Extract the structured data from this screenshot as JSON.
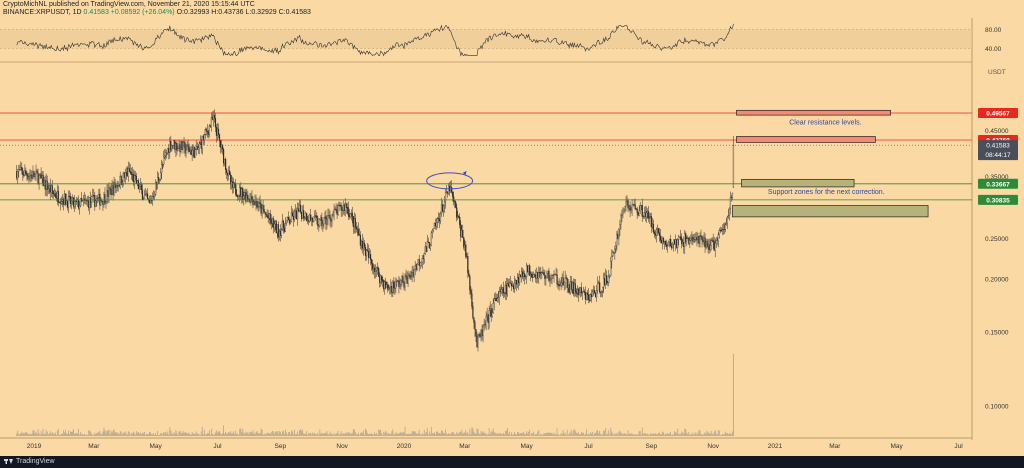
{
  "header": {
    "line1": "CryptoMichNL published on TradingView.com, November 21, 2020 15:15:44 UTC",
    "symbol": "BINANCE:XRPUSDT, 1D",
    "price": "0.41583",
    "change": "+0.08592 (+26.04%)",
    "open": "O:0.32993",
    "high": "H:0.43736",
    "low": "L:0.32929",
    "close": "C:0.41583"
  },
  "footer": {
    "brand": "TradingView"
  },
  "chart_data": {
    "type": "candlestick",
    "symbol": "BINANCE:XRPUSDT",
    "interval": "1D",
    "currency_label": "USDT",
    "price_axis": {
      "range": [
        0.07,
        0.54
      ],
      "ticks": [
        {
          "v": 0.45,
          "t": "0.45000"
        },
        {
          "v": 0.35,
          "t": "0.35000"
        },
        {
          "v": 0.25,
          "t": "0.25000"
        },
        {
          "v": 0.2,
          "t": "0.20000"
        },
        {
          "v": 0.15,
          "t": "0.15000"
        },
        {
          "v": 0.1,
          "t": "0.10000"
        }
      ]
    },
    "time_axis": {
      "labels": [
        "2019",
        "Mar",
        "May",
        "Jul",
        "Sep",
        "Nov",
        "2020",
        "Mar",
        "May",
        "Jul",
        "Sep",
        "Nov",
        "2021",
        "Mar",
        "May",
        "Jul"
      ]
    },
    "price_path": [
      [
        "2018-12-15",
        0.36
      ],
      [
        "2019-01-05",
        0.35
      ],
      [
        "2019-01-20",
        0.32
      ],
      [
        "2019-02-10",
        0.3
      ],
      [
        "2019-03-10",
        0.31
      ],
      [
        "2019-04-05",
        0.36
      ],
      [
        "2019-04-25",
        0.3
      ],
      [
        "2019-05-15",
        0.42
      ],
      [
        "2019-06-10",
        0.4
      ],
      [
        "2019-06-27",
        0.48
      ],
      [
        "2019-07-15",
        0.33
      ],
      [
        "2019-08-05",
        0.31
      ],
      [
        "2019-08-30",
        0.26
      ],
      [
        "2019-09-20",
        0.29
      ],
      [
        "2019-10-10",
        0.27
      ],
      [
        "2019-11-05",
        0.3
      ],
      [
        "2019-11-25",
        0.23
      ],
      [
        "2019-12-15",
        0.19
      ],
      [
        "2020-01-05",
        0.2
      ],
      [
        "2020-01-25",
        0.24
      ],
      [
        "2020-02-15",
        0.33
      ],
      [
        "2020-03-01",
        0.24
      ],
      [
        "2020-03-13",
        0.14
      ],
      [
        "2020-04-01",
        0.18
      ],
      [
        "2020-05-01",
        0.21
      ],
      [
        "2020-06-01",
        0.2
      ],
      [
        "2020-07-01",
        0.18
      ],
      [
        "2020-07-20",
        0.2
      ],
      [
        "2020-08-05",
        0.3
      ],
      [
        "2020-08-25",
        0.29
      ],
      [
        "2020-09-15",
        0.24
      ],
      [
        "2020-10-10",
        0.25
      ],
      [
        "2020-11-01",
        0.24
      ],
      [
        "2020-11-14",
        0.27
      ],
      [
        "2020-11-20",
        0.33
      ],
      [
        "2020-11-21",
        0.41583
      ]
    ],
    "horizontal_levels": [
      {
        "price": 0.49567,
        "label": "0.49567",
        "kind": "resistance"
      },
      {
        "price": 0.42769,
        "label": "0.42769",
        "kind": "resistance"
      },
      {
        "price": 0.33667,
        "label": "0.33667",
        "kind": "support"
      },
      {
        "price": 0.30835,
        "label": "0.30835",
        "kind": "support"
      }
    ],
    "current_price": {
      "label": "0.41583",
      "countdown": "08:44:17"
    },
    "zones": [
      {
        "kind": "resistance",
        "from": "2020-11-24",
        "to": "2021-04-25",
        "low": 0.49,
        "high": 0.503
      },
      {
        "kind": "resistance",
        "from": "2020-11-24",
        "to": "2021-04-10",
        "low": 0.422,
        "high": 0.436
      },
      {
        "kind": "support",
        "from": "2020-11-29",
        "to": "2021-03-20",
        "low": 0.331,
        "high": 0.345
      },
      {
        "kind": "support",
        "from": "2020-11-20",
        "to": "2021-06-01",
        "low": 0.281,
        "high": 0.299
      }
    ],
    "annotations": [
      {
        "text": "Clear resistance levels.",
        "anchor_date": "2021-01-15",
        "anchor_price": 0.465
      },
      {
        "text": "Support zones for the next correction.",
        "anchor_date": "2020-12-25",
        "anchor_price": 0.318
      }
    ],
    "ellipse": {
      "date": "2020-02-15",
      "price": 0.342
    },
    "rsi": {
      "levels": [
        {
          "v": 80,
          "t": "80.00"
        },
        {
          "v": 40,
          "t": "40.00"
        }
      ],
      "range": [
        20,
        100
      ],
      "last": 92
    },
    "colors": {
      "background": "#fbd9a4",
      "candle": "#2a2a2a",
      "resistance_line": "#e8281e",
      "support_line": "#2d8b36",
      "resistance_zone": "#f48a72",
      "support_zone": "#b7b279",
      "label_red": "#e8281e",
      "label_green": "#2d8b36",
      "label_dark": "#4a4e5a",
      "ellipse": "#3d4bc2",
      "annotation_text": "#2f47a8"
    }
  }
}
